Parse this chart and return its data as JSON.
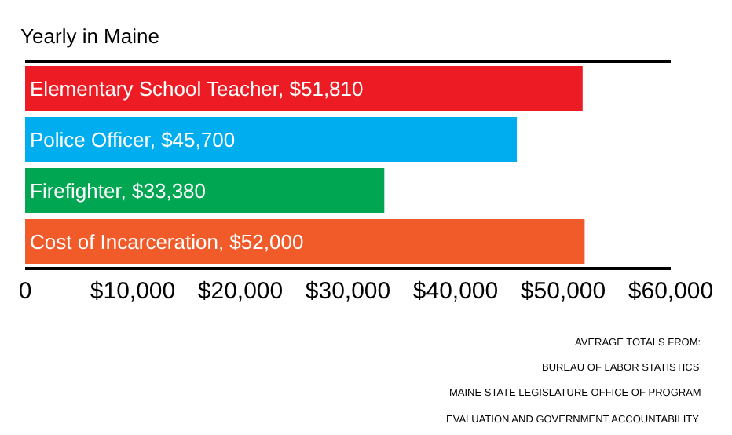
{
  "chart_data": {
    "type": "bar",
    "orientation": "horizontal",
    "title": "Yearly in Maine",
    "categories": [
      null,
      null,
      null,
      null
    ],
    "values": [
      51810,
      45700,
      33380,
      52000
    ],
    "colors": [
      "#ed1c24",
      "#00aeef",
      "#00a651",
      "#f15a29"
    ],
    "value_labels": [
      "Elementary School Teacher, $51,810",
      "Police Officer, $45,700",
      "Firefighter, $33,380",
      "Cost of Incarceration, $52,000"
    ],
    "xlim": [
      0,
      60000
    ],
    "xticks": [
      0,
      {
        "value": 10000,
        "label": "$10,000"
      },
      {
        "value": 20000,
        "label": "$20,000"
      },
      {
        "value": 30000,
        "label": "$30,000"
      },
      {
        "value": 40000,
        "label": "$40,000"
      },
      {
        "value": 50000,
        "label": "$50,000"
      },
      {
        "value": 60000,
        "label": "$60,000"
      }
    ],
    "tick_labels": "x",
    "annotations": [
      "AVERAGE TOTALS FROM:",
      "BUREAU OF LABOR STATISTICS",
      "MAINE STATE LEGISLATURE OFFICE OF PROGRAM",
      "EVALUATION AND GOVERNMENT ACCOUNTABILITY"
    ]
  }
}
